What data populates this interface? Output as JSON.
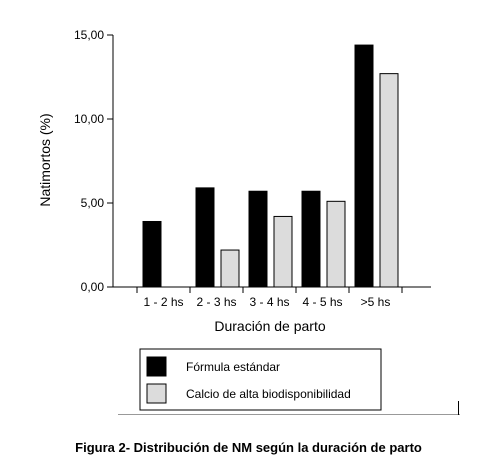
{
  "chart_data": {
    "type": "bar",
    "categories": [
      "1 - 2 hs",
      "2 - 3 hs",
      "3 - 4 hs",
      "4 - 5 hs",
      ">5 hs"
    ],
    "series": [
      {
        "name": "Fórmula estándar",
        "values": [
          3.9,
          5.9,
          5.7,
          5.7,
          14.4
        ],
        "color": "#000000"
      },
      {
        "name": "Calcio de alta biodisponibilidad",
        "values": [
          null,
          2.2,
          4.2,
          5.1,
          12.7
        ],
        "color": "#dcdcdc"
      }
    ],
    "xlabel": "Duración de parto",
    "ylabel": "Natimortos (%)",
    "ylim": [
      0,
      15
    ],
    "yticks": [
      0,
      5,
      10,
      15
    ],
    "ytick_labels": [
      "0,00",
      "5,00",
      "10,00",
      "15,00"
    ],
    "grid": false,
    "legend_position": "bottom"
  },
  "caption": "Figura 2- Distribución de NM según la duración de parto"
}
